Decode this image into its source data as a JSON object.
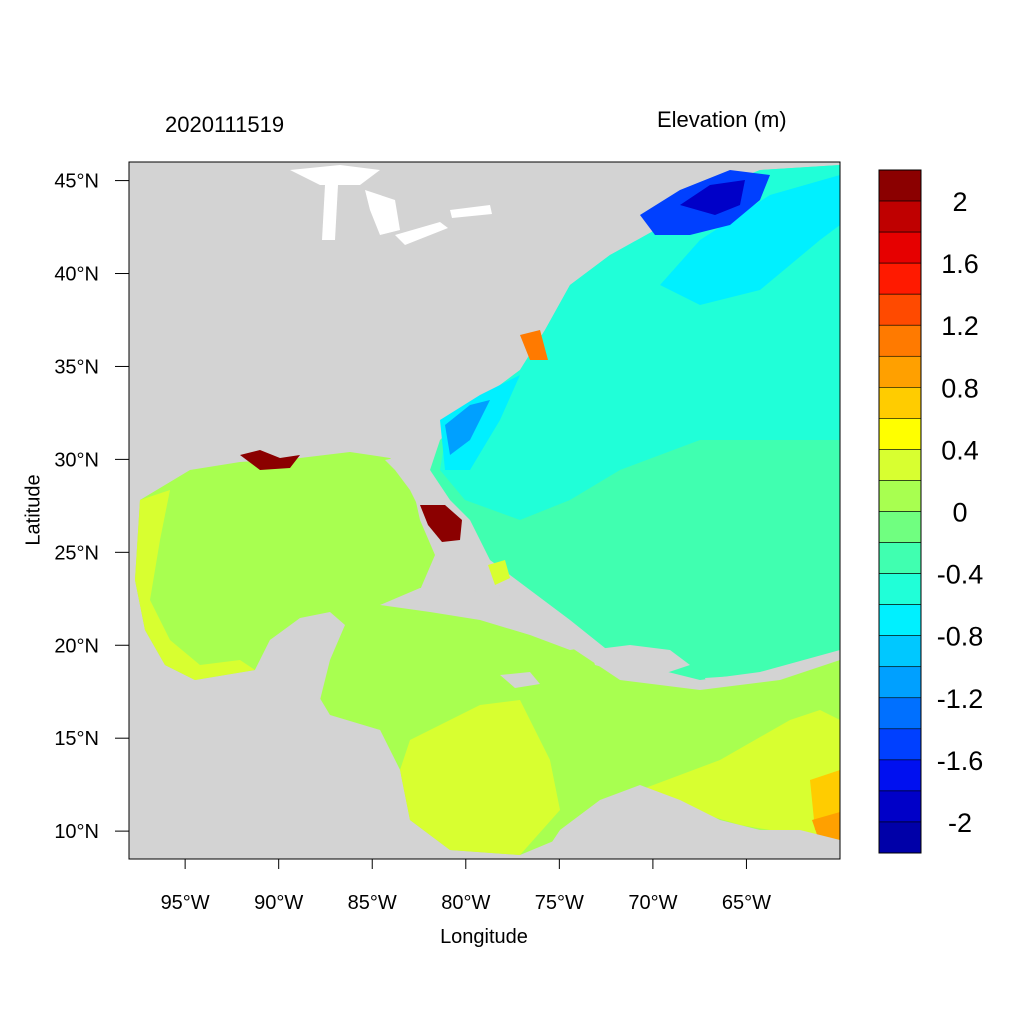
{
  "header": {
    "left_title": "2020111519",
    "right_title": "Elevation (m)"
  },
  "axes": {
    "xlabel": "Longitude",
    "ylabel": "Latitude",
    "x_ticks": [
      "95°W",
      "90°W",
      "85°W",
      "80°W",
      "75°W",
      "70°W",
      "65°W"
    ],
    "x_tick_values": [
      -95,
      -90,
      -85,
      -80,
      -75,
      -70,
      -65
    ],
    "y_ticks": [
      "45°N",
      "40°N",
      "35°N",
      "30°N",
      "25°N",
      "20°N",
      "15°N",
      "10°N"
    ],
    "y_tick_values": [
      45,
      40,
      35,
      30,
      25,
      20,
      15,
      10
    ],
    "xlim": [
      -98,
      -60
    ],
    "ylim": [
      8.5,
      46
    ]
  },
  "colorbar": {
    "labels": [
      "2",
      "1.6",
      "1.2",
      "0.8",
      "0.4",
      "0",
      "-0.4",
      "-0.8",
      "-1.2",
      "-1.6",
      "-2"
    ],
    "colors": [
      "#8b0000",
      "#bf0000",
      "#e60000",
      "#ff1a00",
      "#ff4a00",
      "#ff7a00",
      "#ffa000",
      "#ffcc00",
      "#ffff00",
      "#d8ff30",
      "#a8ff50",
      "#70ff80",
      "#40ffb0",
      "#20ffd8",
      "#00f0ff",
      "#00c8ff",
      "#00a0ff",
      "#0070ff",
      "#0040ff",
      "#0010f0",
      "#0000c8",
      "#0000a8"
    ],
    "range": [
      -2.2,
      2.2
    ]
  },
  "map_colors": {
    "land": "#d3d3d3",
    "lakes": "#ffffff",
    "water_zero": "#a8ff50",
    "water_neg04": "#40ffb0",
    "water_pos04": "#d8ff30"
  }
}
